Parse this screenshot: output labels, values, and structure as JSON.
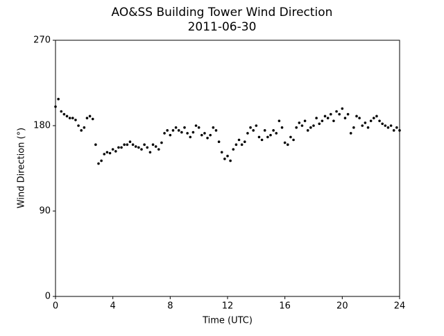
{
  "chart_data": {
    "type": "scatter",
    "title": "AO&SS Building Tower Wind Direction",
    "subtitle": "2011-06-30",
    "xlabel": "Time (UTC)",
    "ylabel": "Wind Direction (°)",
    "color": "#000000",
    "xlim": [
      0,
      24
    ],
    "xticks": [
      0,
      4,
      8,
      12,
      16,
      20,
      24
    ],
    "ylim": [
      0,
      270
    ],
    "yticks": [
      0,
      90,
      180,
      270
    ],
    "x": [
      0.0,
      0.2,
      0.4,
      0.6,
      0.8,
      1.0,
      1.2,
      1.4,
      1.6,
      1.8,
      2.0,
      2.2,
      2.4,
      2.6,
      2.8,
      3.0,
      3.2,
      3.4,
      3.6,
      3.8,
      4.0,
      4.2,
      4.4,
      4.6,
      4.8,
      5.0,
      5.2,
      5.4,
      5.6,
      5.8,
      6.0,
      6.2,
      6.4,
      6.6,
      6.8,
      7.0,
      7.2,
      7.4,
      7.6,
      7.8,
      8.0,
      8.2,
      8.4,
      8.6,
      8.8,
      9.0,
      9.2,
      9.4,
      9.6,
      9.8,
      10.0,
      10.2,
      10.4,
      10.6,
      10.8,
      11.0,
      11.2,
      11.4,
      11.6,
      11.8,
      12.0,
      12.2,
      12.4,
      12.6,
      12.8,
      13.0,
      13.2,
      13.4,
      13.6,
      13.8,
      14.0,
      14.2,
      14.4,
      14.6,
      14.8,
      15.0,
      15.2,
      15.4,
      15.6,
      15.8,
      16.0,
      16.2,
      16.4,
      16.6,
      16.8,
      17.0,
      17.2,
      17.4,
      17.6,
      17.8,
      18.0,
      18.2,
      18.4,
      18.6,
      18.8,
      19.0,
      19.2,
      19.4,
      19.6,
      19.8,
      20.0,
      20.2,
      20.4,
      20.6,
      20.8,
      21.0,
      21.2,
      21.4,
      21.6,
      21.8,
      22.0,
      22.2,
      22.4,
      22.6,
      22.8,
      23.0,
      23.2,
      23.4,
      23.6,
      23.8,
      24.0
    ],
    "values": [
      200,
      208,
      195,
      192,
      190,
      188,
      188,
      186,
      180,
      175,
      178,
      188,
      190,
      187,
      160,
      140,
      143,
      150,
      152,
      151,
      155,
      153,
      157,
      157,
      160,
      160,
      163,
      160,
      158,
      157,
      155,
      160,
      157,
      152,
      160,
      158,
      155,
      162,
      172,
      175,
      170,
      175,
      178,
      175,
      173,
      178,
      172,
      168,
      173,
      180,
      178,
      170,
      172,
      167,
      170,
      178,
      175,
      163,
      152,
      145,
      148,
      143,
      155,
      160,
      165,
      160,
      163,
      172,
      178,
      175,
      180,
      168,
      165,
      175,
      168,
      170,
      175,
      172,
      185,
      178,
      162,
      160,
      168,
      165,
      178,
      183,
      180,
      185,
      175,
      178,
      180,
      188,
      182,
      185,
      190,
      188,
      192,
      185,
      195,
      192,
      198,
      188,
      192,
      172,
      178,
      190,
      188,
      180,
      183,
      178,
      185,
      188,
      190,
      185,
      182,
      180,
      178,
      180,
      175,
      178,
      175
    ]
  }
}
